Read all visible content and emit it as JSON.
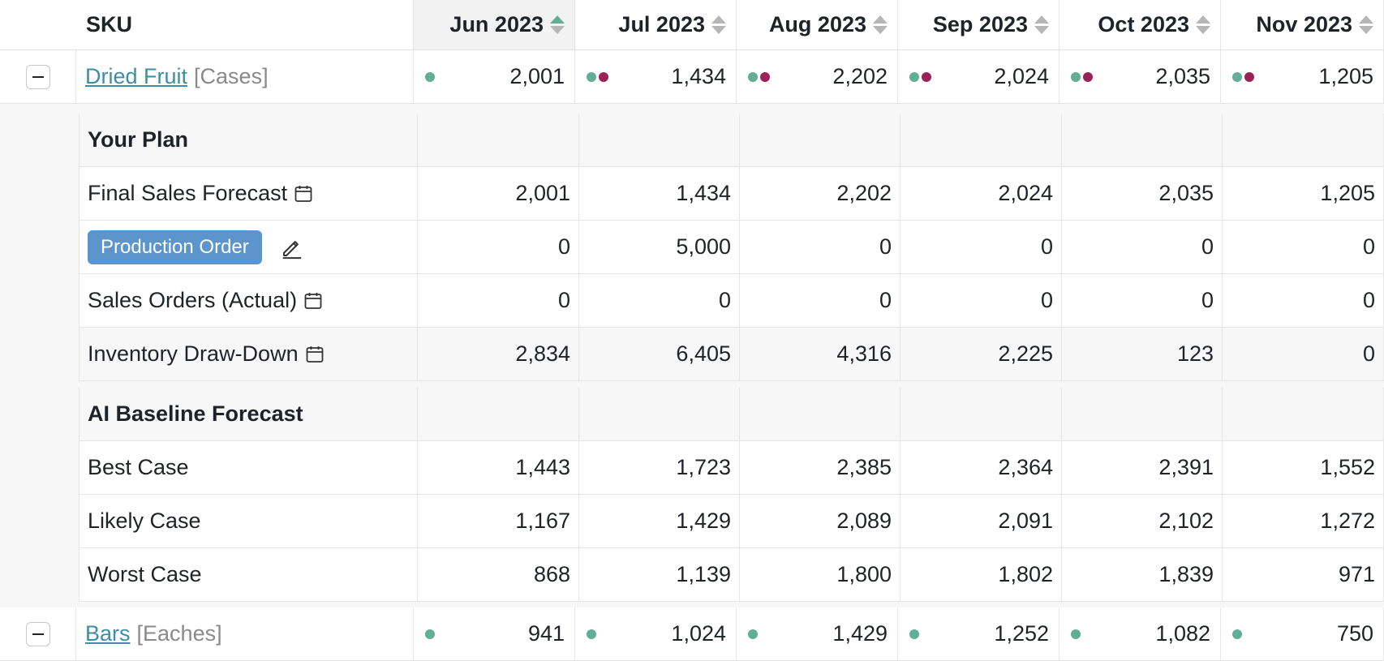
{
  "header": {
    "sku_label": "SKU",
    "months": [
      "Jun 2023",
      "Jul 2023",
      "Aug 2023",
      "Sep 2023",
      "Oct 2023",
      "Nov 2023"
    ],
    "sorted_month": "Jun 2023"
  },
  "colors": {
    "teal_dot": "#5fae95",
    "plum_dot": "#9b2257",
    "link": "#3c8ea8",
    "button": "#5b95cc"
  },
  "skus": [
    {
      "name": "Dried Fruit",
      "unit": "[Cases]",
      "cells": [
        {
          "value": "2,001",
          "dots": [
            "teal"
          ]
        },
        {
          "value": "1,434",
          "dots": [
            "teal",
            "plum"
          ]
        },
        {
          "value": "2,202",
          "dots": [
            "teal",
            "plum"
          ]
        },
        {
          "value": "2,024",
          "dots": [
            "teal",
            "plum"
          ]
        },
        {
          "value": "2,035",
          "dots": [
            "teal",
            "plum"
          ]
        },
        {
          "value": "1,205",
          "dots": [
            "teal",
            "plum"
          ]
        }
      ],
      "expanded": true
    },
    {
      "name": "Bars",
      "unit": "[Eaches]",
      "cells": [
        {
          "value": "941",
          "dots": [
            "teal"
          ]
        },
        {
          "value": "1,024",
          "dots": [
            "teal"
          ]
        },
        {
          "value": "1,429",
          "dots": [
            "teal"
          ]
        },
        {
          "value": "1,252",
          "dots": [
            "teal"
          ]
        },
        {
          "value": "1,082",
          "dots": [
            "teal"
          ]
        },
        {
          "value": "750",
          "dots": [
            "teal"
          ]
        }
      ],
      "expanded": true
    }
  ],
  "plan": {
    "title": "Your Plan",
    "rows": [
      {
        "label": "Final Sales Forecast",
        "icon": "calendar-icon",
        "values": [
          "2,001",
          "1,434",
          "2,202",
          "2,024",
          "2,035",
          "1,205"
        ]
      },
      {
        "label": "Production Order",
        "type": "button",
        "icon": "edit-icon",
        "values": [
          "0",
          "5,000",
          "0",
          "0",
          "0",
          "0"
        ]
      },
      {
        "label": "Sales Orders (Actual)",
        "icon": "calendar-icon",
        "values": [
          "0",
          "0",
          "0",
          "0",
          "0",
          "0"
        ]
      },
      {
        "label": "Inventory Draw-Down",
        "icon": "calendar-icon",
        "shaded": true,
        "values": [
          "2,834",
          "6,405",
          "4,316",
          "2,225",
          "123",
          "0"
        ]
      }
    ]
  },
  "baseline": {
    "title": "AI Baseline Forecast",
    "rows": [
      {
        "label": "Best Case",
        "values": [
          "1,443",
          "1,723",
          "2,385",
          "2,364",
          "2,391",
          "1,552"
        ]
      },
      {
        "label": "Likely Case",
        "values": [
          "1,167",
          "1,429",
          "2,089",
          "2,091",
          "2,102",
          "1,272"
        ]
      },
      {
        "label": "Worst Case",
        "values": [
          "868",
          "1,139",
          "1,800",
          "1,802",
          "1,839",
          "971"
        ]
      }
    ]
  }
}
